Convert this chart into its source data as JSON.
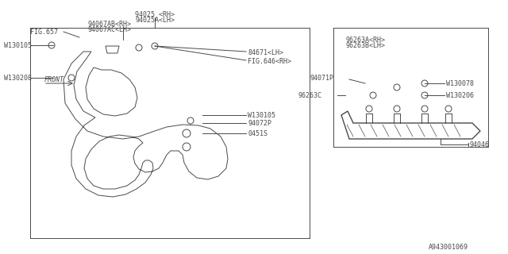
{
  "bg_color": "#ffffff",
  "line_color": "#4a4a4a",
  "thin_line": 0.7,
  "medium_line": 1.0,
  "title": "",
  "part_number_bottom_right": "A943001069",
  "labels": {
    "94025_RH": "94025 <RH>",
    "94025A_LH": "94025A<LH>",
    "94072P": "94072P",
    "0451S": "0451S",
    "W130105_right": "W130105",
    "84671_LH": "84671<LH>",
    "FIG646_RH": "FIG.646<RH>",
    "94067AB_RH": "94067AB<RH>",
    "94067AC_LH": "94067AC<LH>",
    "FIG657": "FIG.657",
    "W130208": "W130208",
    "W130105_left": "W130105",
    "FRONT": "FRONT",
    "94046": "94046",
    "96263C": "96263C",
    "94071P": "94071P",
    "W130206": "W130206",
    "W130078": "W130078",
    "96263A_RH": "96263A<RH>",
    "96263B_LH": "96263B<LH>"
  },
  "font_size_label": 6.5,
  "font_size_small": 6.0,
  "font_size_partnum": 7.5
}
